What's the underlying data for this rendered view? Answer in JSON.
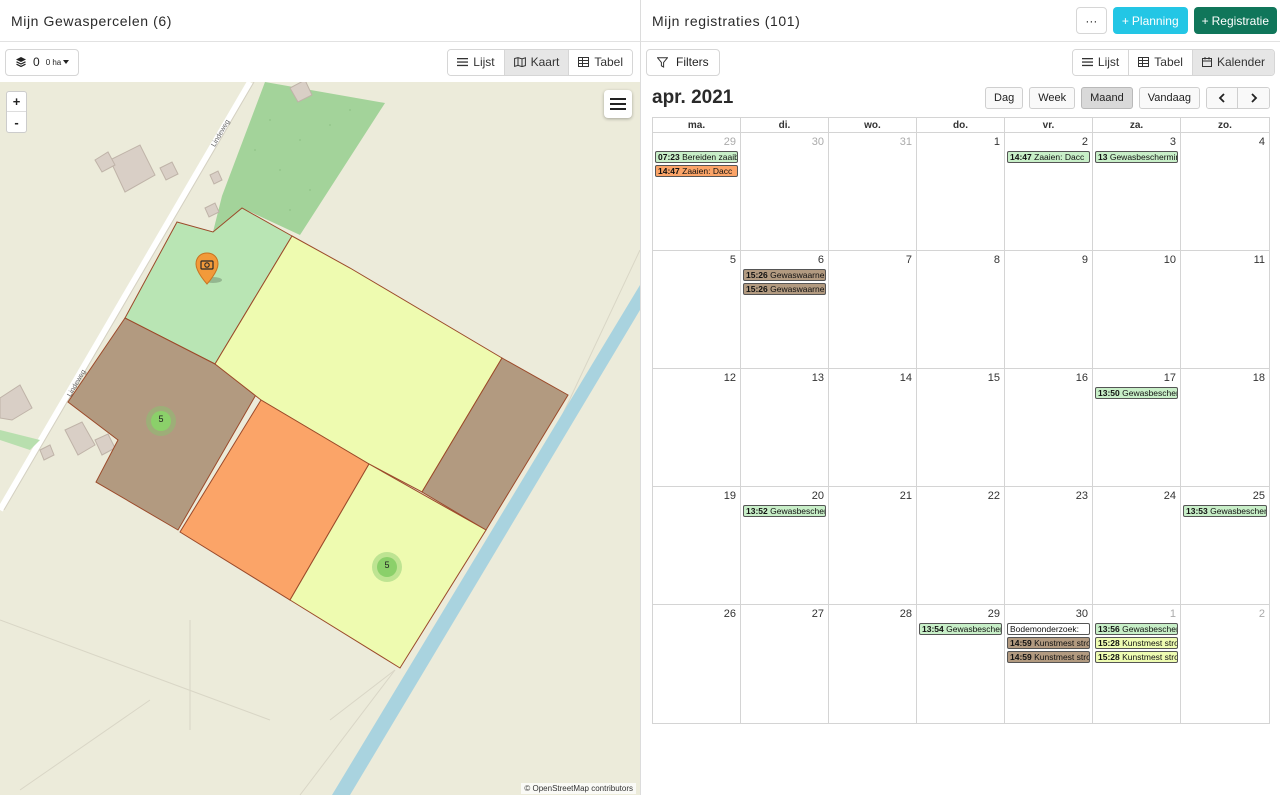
{
  "left": {
    "title": "Mijn Gewaspercelen (6)",
    "layer_count": "0",
    "layer_area": "0 ha",
    "views": [
      "Lijst",
      "Kaart",
      "Tabel"
    ],
    "active_view": "Kaart",
    "zoom_in": "+",
    "zoom_out": "-",
    "attribution": "© OpenStreetMap contributors",
    "road_label_1": "Lindeweg",
    "road_label_2": "Lindeweg",
    "cluster_1": "5",
    "cluster_2": "5"
  },
  "right": {
    "title": "Mijn registraties (101)",
    "more_label": "···",
    "planning_label": "Planning",
    "registratie_label": "Registratie",
    "filters_label": "Filters",
    "views": [
      "Lijst",
      "Tabel",
      "Kalender"
    ],
    "active_view": "Kalender",
    "calendar": {
      "title": "apr. 2021",
      "range_buttons": [
        "Dag",
        "Week",
        "Maand"
      ],
      "active_range": "Maand",
      "today_label": "Vandaag",
      "prev": "‹",
      "next": "›",
      "weekdays": [
        "ma.",
        "di.",
        "wo.",
        "do.",
        "vr.",
        "za.",
        "zo."
      ],
      "weeks": [
        [
          {
            "n": "29",
            "other": true,
            "events": [
              {
                "time": "07:23",
                "text": "Bereiden zaaibed",
                "color": "#c8efc8"
              },
              {
                "time": "14:47",
                "text": "Zaaien: Dacc",
                "color": "#fba468"
              }
            ]
          },
          {
            "n": "30",
            "other": true,
            "events": []
          },
          {
            "n": "31",
            "other": true,
            "events": []
          },
          {
            "n": "1",
            "events": []
          },
          {
            "n": "2",
            "events": [
              {
                "time": "14:47",
                "text": "Zaaien: Dacc",
                "color": "#c8efc8"
              }
            ]
          },
          {
            "n": "3",
            "events": [
              {
                "time": "13",
                "text": "Gewasbescherming",
                "color": "#c8efc8"
              }
            ]
          },
          {
            "n": "4",
            "events": []
          }
        ],
        [
          {
            "n": "5",
            "events": []
          },
          {
            "n": "6",
            "events": [
              {
                "time": "15:26",
                "text": "Gewaswaarneming",
                "color": "#b29a80"
              },
              {
                "time": "15:26",
                "text": "Gewaswaarneming",
                "color": "#b29a80"
              }
            ]
          },
          {
            "n": "7",
            "events": []
          },
          {
            "n": "8",
            "events": []
          },
          {
            "n": "9",
            "events": []
          },
          {
            "n": "10",
            "events": []
          },
          {
            "n": "11",
            "events": []
          }
        ],
        [
          {
            "n": "12",
            "events": []
          },
          {
            "n": "13",
            "events": []
          },
          {
            "n": "14",
            "events": []
          },
          {
            "n": "15",
            "events": []
          },
          {
            "n": "16",
            "events": []
          },
          {
            "n": "17",
            "events": [
              {
                "time": "13:50",
                "text": "Gewasbescherming",
                "color": "#c8efc8"
              }
            ]
          },
          {
            "n": "18",
            "events": []
          }
        ],
        [
          {
            "n": "19",
            "events": []
          },
          {
            "n": "20",
            "events": [
              {
                "time": "13:52",
                "text": "Gewasbescherming",
                "color": "#c8efc8"
              }
            ]
          },
          {
            "n": "21",
            "events": []
          },
          {
            "n": "22",
            "events": []
          },
          {
            "n": "23",
            "events": []
          },
          {
            "n": "24",
            "events": []
          },
          {
            "n": "25",
            "events": [
              {
                "time": "13:53",
                "text": "Gewasbescherming",
                "color": "#c8efc8"
              }
            ]
          }
        ],
        [
          {
            "n": "26",
            "events": []
          },
          {
            "n": "27",
            "events": []
          },
          {
            "n": "28",
            "events": []
          },
          {
            "n": "29",
            "events": [
              {
                "time": "13:54",
                "text": "Gewasbescherming",
                "color": "#c8efc8"
              }
            ]
          },
          {
            "n": "30",
            "events": [
              {
                "time": "",
                "text": "Bodemonderzoek:",
                "color": "#ffffff"
              },
              {
                "time": "14:59",
                "text": "Kunstmest strooien",
                "color": "#b29a80"
              },
              {
                "time": "14:59",
                "text": "Kunstmest strooien",
                "color": "#b29a80"
              }
            ]
          },
          {
            "n": "1",
            "other": true,
            "events": [
              {
                "time": "13:56",
                "text": "Gewasbescherming",
                "color": "#c8efc8"
              },
              {
                "time": "15:28",
                "text": "Kunstmest strooien",
                "color": "#eefcb2"
              },
              {
                "time": "15:28",
                "text": "Kunstmest strooien",
                "color": "#eefcb2"
              }
            ]
          },
          {
            "n": "2",
            "other": true,
            "events": []
          }
        ]
      ]
    }
  }
}
